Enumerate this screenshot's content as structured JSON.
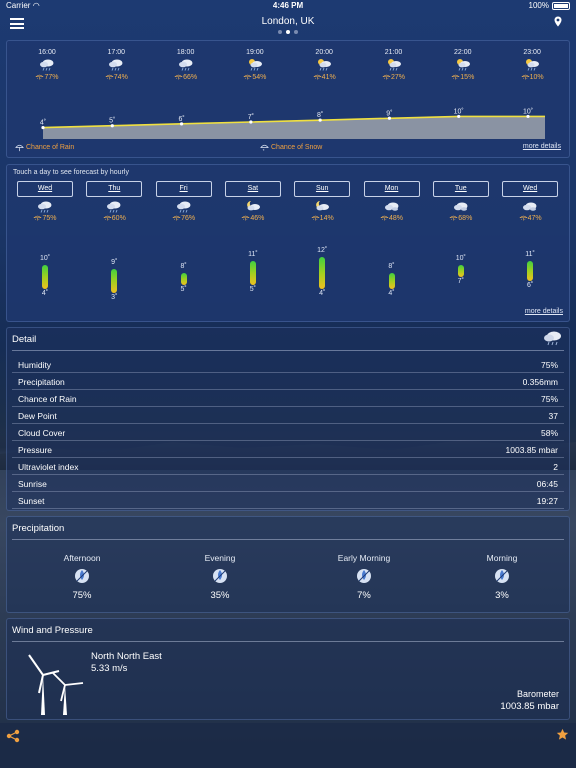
{
  "status": {
    "carrier": "Carrier",
    "time": "4:46 PM",
    "battery": "100%"
  },
  "header": {
    "title": "London, UK",
    "page_dots": 3,
    "active_dot": 1
  },
  "hourly": {
    "hours": [
      {
        "time": "16:00",
        "icon": "rain-cloud",
        "chance": "77%",
        "temp": "4˚",
        "t": 4
      },
      {
        "time": "17:00",
        "icon": "rain-cloud",
        "chance": "74%",
        "temp": "5˚",
        "t": 5
      },
      {
        "time": "18:00",
        "icon": "rain-cloud",
        "chance": "66%",
        "temp": "6˚",
        "t": 6
      },
      {
        "time": "19:00",
        "icon": "partly-sunny-rain",
        "chance": "54%",
        "temp": "7˚",
        "t": 7
      },
      {
        "time": "20:00",
        "icon": "partly-sunny-rain",
        "chance": "41%",
        "temp": "8˚",
        "t": 8
      },
      {
        "time": "21:00",
        "icon": "partly-sunny-rain",
        "chance": "27%",
        "temp": "9˚",
        "t": 9
      },
      {
        "time": "22:00",
        "icon": "partly-sunny-rain",
        "chance": "15%",
        "temp": "10˚",
        "t": 10
      },
      {
        "time": "23:00",
        "icon": "partly-sunny-rain",
        "chance": "10%",
        "temp": "10˚",
        "t": 10
      }
    ],
    "legend_rain": "Chance of Rain",
    "legend_snow": "Chance of Snow",
    "more_details": "more details"
  },
  "daily": {
    "hint": "Touch a day to see forecast by hourly",
    "days": [
      {
        "label": "Wed",
        "icon": "rain-cloud",
        "chance": "75%",
        "hi_text": "10˚",
        "lo_text": "4˚",
        "hi": 10,
        "lo": 4
      },
      {
        "label": "Thu",
        "icon": "rain-cloud",
        "chance": "60%",
        "hi_text": "9˚",
        "lo_text": "3˚",
        "hi": 9,
        "lo": 3
      },
      {
        "label": "Fri",
        "icon": "rain-cloud",
        "chance": "76%",
        "hi_text": "8˚",
        "lo_text": "5˚",
        "hi": 8,
        "lo": 5
      },
      {
        "label": "Sat",
        "icon": "night-rain",
        "chance": "46%",
        "hi_text": "11˚",
        "lo_text": "5˚",
        "hi": 11,
        "lo": 5
      },
      {
        "label": "Sun",
        "icon": "night-rain",
        "chance": "14%",
        "hi_text": "12˚",
        "lo_text": "4˚",
        "hi": 12,
        "lo": 4
      },
      {
        "label": "Mon",
        "icon": "cloud",
        "chance": "48%",
        "hi_text": "8˚",
        "lo_text": "4˚",
        "hi": 8,
        "lo": 4
      },
      {
        "label": "Tue",
        "icon": "cloud",
        "chance": "68%",
        "hi_text": "10˚",
        "lo_text": "7˚",
        "hi": 10,
        "lo": 7
      },
      {
        "label": "Wed",
        "icon": "cloud",
        "chance": "47%",
        "hi_text": "11˚",
        "lo_text": "6˚",
        "hi": 11,
        "lo": 6
      }
    ],
    "more_details": "more details"
  },
  "detail": {
    "title": "Detail",
    "rows": [
      {
        "key": "Humidity",
        "value": "75%"
      },
      {
        "key": "Precipitation",
        "value": "0.356mm"
      },
      {
        "key": "Chance of Rain",
        "value": "75%"
      },
      {
        "key": "Dew Point",
        "value": "37"
      },
      {
        "key": "Cloud Cover",
        "value": "58%"
      },
      {
        "key": "Pressure",
        "value": "1003.85 mbar"
      },
      {
        "key": "Ultraviolet index",
        "value": "2"
      },
      {
        "key": "Sunrise",
        "value": "06:45"
      },
      {
        "key": "Sunset",
        "value": "19:27"
      }
    ]
  },
  "precipitation": {
    "title": "Precipitation",
    "periods": [
      {
        "name": "Afternoon",
        "value": "75%"
      },
      {
        "name": "Evening",
        "value": "35%"
      },
      {
        "name": "Early Morning",
        "value": "7%"
      },
      {
        "name": "Morning",
        "value": "3%"
      }
    ]
  },
  "wind": {
    "title": "Wind and Pressure",
    "direction": "North North East",
    "speed": "5.33 m/s",
    "barometer_label": "Barometer",
    "barometer_value": "1003.85 mbar"
  },
  "colors": {
    "accent": "#f0a040",
    "temp_line": "#f0e040",
    "bar_top": "#40d040",
    "bar_bottom": "#f0c020"
  }
}
